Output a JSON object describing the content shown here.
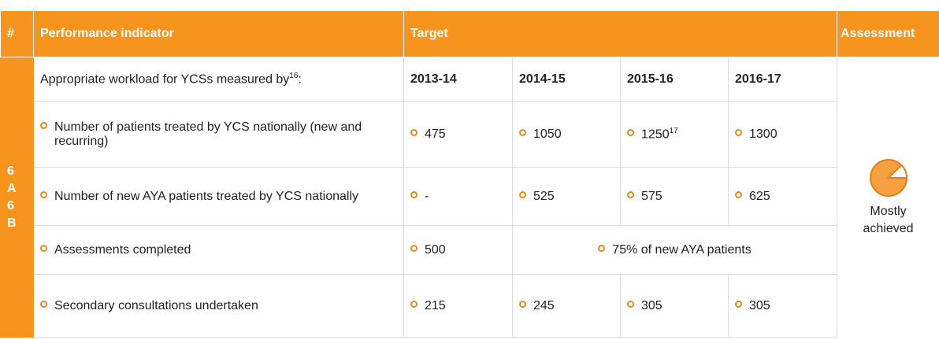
{
  "header": {
    "number": "#",
    "indicator": "Performance indicator",
    "target": "Target",
    "assessment": "Assessment"
  },
  "id_label": [
    "6",
    "A",
    "6",
    "B"
  ],
  "intro_row": {
    "label": "Appropriate workload for YCSs measured by",
    "footnote": "16",
    "suffix": ":",
    "years": [
      "2013-14",
      "2014-15",
      "2015-16",
      "2016-17"
    ]
  },
  "rows": [
    {
      "indicator": "Number of patients treated by YCS nationally (new and recurring)",
      "targets": [
        "475",
        "1050",
        "1250",
        "1300"
      ],
      "footnotes": [
        null,
        null,
        "17",
        null
      ]
    },
    {
      "indicator": "Number of new AYA patients treated by YCS nationally",
      "targets": [
        "-",
        "525",
        "575",
        "625"
      ]
    },
    {
      "indicator": "Assessments completed",
      "targets": [
        "500",
        "75% of new AYA patients"
      ]
    },
    {
      "indicator": "Secondary consultations undertaken",
      "targets": [
        "215",
        "245",
        "305",
        "305"
      ]
    }
  ],
  "assessment": {
    "label": "Mostly achieved"
  }
}
